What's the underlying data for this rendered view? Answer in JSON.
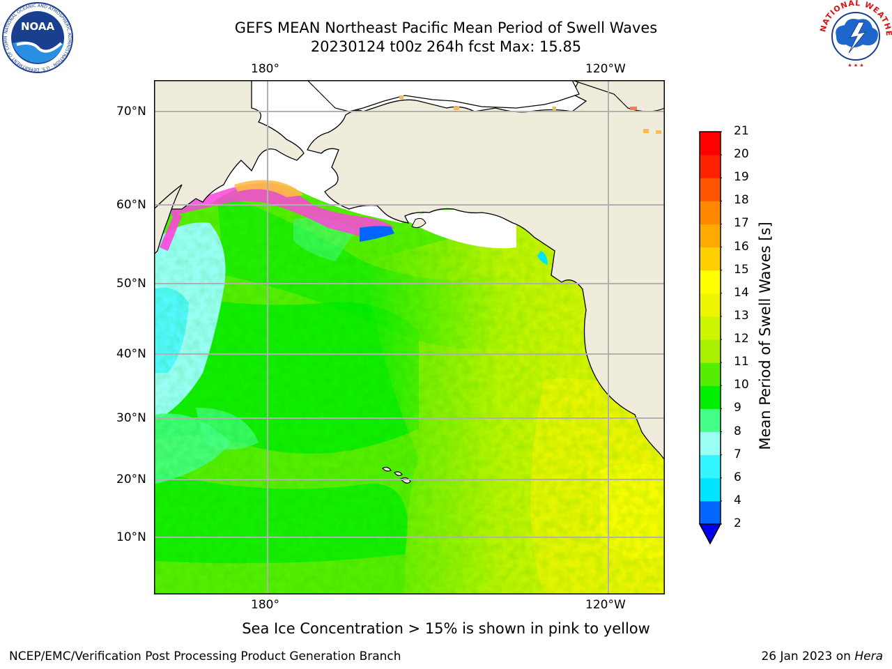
{
  "title": {
    "line1": "GEFS MEAN Northeast Pacific Mean Period of Swell Waves",
    "line2": "20230124 t00z 264h fcst   Max: 15.85"
  },
  "logos": {
    "noaa_text": "NOAA",
    "noaa_ring": "NATIONAL OCEANIC AND ATMOSPHERIC ADMINISTRATION · U.S. DEPARTMENT OF COMMERCE",
    "nws_ring": "NATIONAL WEATHER SERVICE"
  },
  "map": {
    "lon_labels_top": [
      "180°",
      "120°W"
    ],
    "lon_labels_bottom": [
      "180°",
      "120°W"
    ],
    "lat_labels": [
      "70°N",
      "60°N",
      "50°N",
      "40°N",
      "30°N",
      "20°N",
      "10°N"
    ],
    "colors": {
      "land": "#efecdc",
      "coast": "#000000",
      "grid": "#b0b0b0",
      "ice_pink": "#ff44dd",
      "ice_orange": "#ffbb44"
    }
  },
  "colorbar": {
    "title": "Mean Period of Swell Waves [s]",
    "levels": [
      "2",
      "4",
      "6",
      "7",
      "8",
      "9",
      "10",
      "11",
      "12",
      "13",
      "14",
      "15",
      "16",
      "17",
      "18",
      "19",
      "20",
      "21"
    ],
    "colors": [
      "#0066ff",
      "#00e5ff",
      "#33f5ff",
      "#99fff5",
      "#44ff88",
      "#00ee00",
      "#55ee00",
      "#aaee00",
      "#ccf500",
      "#eef500",
      "#ffff00",
      "#ffd000",
      "#ffaa00",
      "#ff8800",
      "#ff5500",
      "#ff2200",
      "#ff0000"
    ],
    "extend_color": "#0000ee"
  },
  "ice_note": "Sea Ice Concentration > 15% is shown in pink to yellow",
  "footer": {
    "left": "NCEP/EMC/Verification Post Processing Product Generation Branch",
    "date": "26 Jan 2023 on ",
    "machine": "Hera"
  }
}
